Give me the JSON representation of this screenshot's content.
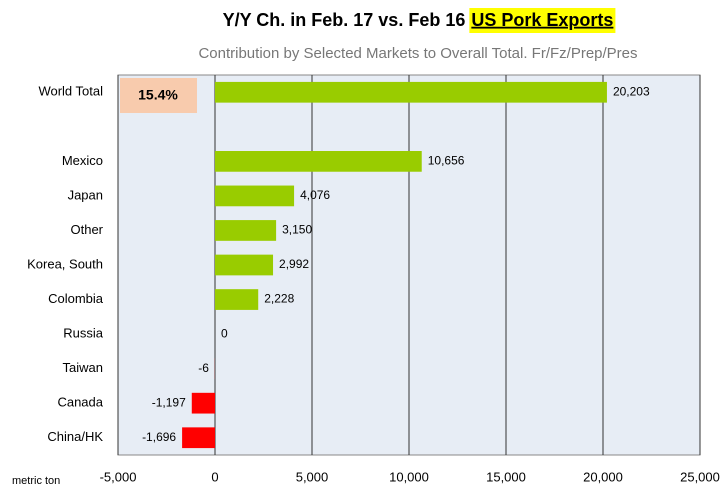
{
  "chart_data": {
    "type": "hbar",
    "title": "Y/Y Ch. in Feb. 17 vs. Feb 16",
    "title_highlight": "US Pork Exports",
    "subtitle": "Contribution by Selected Markets to Overall Total. Fr/Fz/Prep/Pres",
    "annotation": "15.4%",
    "x_axis_label": "metric ton",
    "categories": [
      "World Total",
      null,
      "Mexico",
      "Japan",
      "Other",
      "Korea, South",
      "Colombia",
      "Russia",
      "Taiwan",
      "Canada",
      "China/HK"
    ],
    "values": [
      20203,
      null,
      10656,
      4076,
      3150,
      2992,
      2228,
      0,
      -6,
      -1197,
      -1696
    ],
    "value_labels": [
      "20,203",
      null,
      "10,656",
      "4,076",
      "3,150",
      "2,992",
      "2,228",
      "0",
      "-6",
      "-1,197",
      "-1,696"
    ],
    "positive_color": "#99cc00",
    "negative_color": "#ff0000",
    "xlim": [
      -5000,
      25000
    ],
    "xticks": [
      {
        "value": -5000,
        "label": "-5,000"
      },
      0,
      {
        "value": 5000,
        "label": "5,000"
      },
      {
        "value": 10000,
        "label": "10,000"
      },
      {
        "value": 15000,
        "label": "15,000"
      },
      {
        "value": 20000,
        "label": "20,000"
      },
      {
        "value": 25000,
        "label": "25,000"
      }
    ],
    "grid": true
  }
}
